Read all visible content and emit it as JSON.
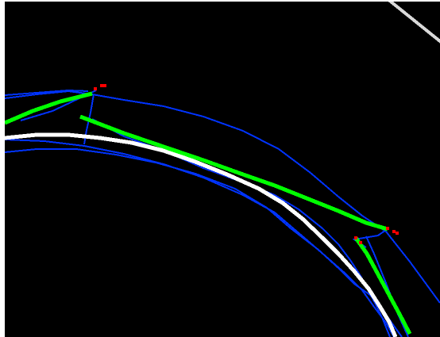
{
  "colors": {
    "background": "#000000",
    "border": "#ffffff",
    "reference_line": "#ffffff",
    "faint_line": "#d9d9d9",
    "detected_line": "#00ff00",
    "candidate_line": "#0033ff",
    "endpoint_marker": "#ff0000"
  },
  "legend": "none",
  "grid": false
}
